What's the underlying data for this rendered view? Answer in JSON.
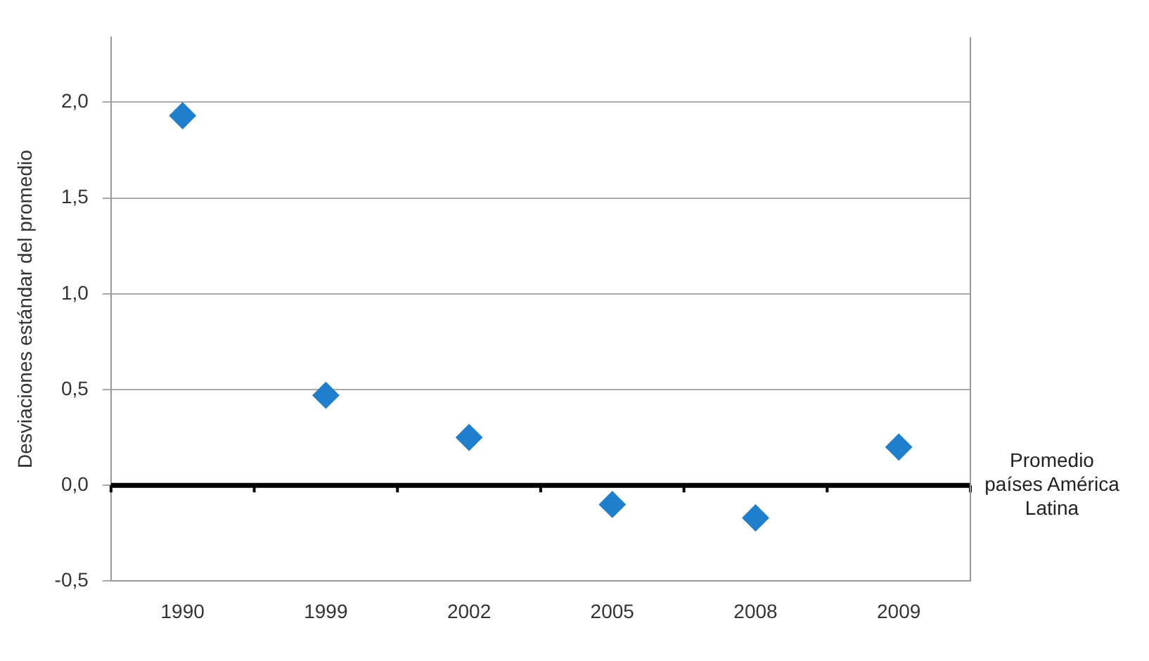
{
  "chart_data": {
    "type": "scatter",
    "categories": [
      "1990",
      "1999",
      "2002",
      "2005",
      "2008",
      "2009"
    ],
    "series": [
      {
        "color": "#1f7fcc",
        "values": [
          1.93,
          0.47,
          0.25,
          -0.1,
          -0.17,
          0.2
        ]
      }
    ],
    "ylabel": "Desviaciones estándar del promedio",
    "ylim": [
      -0.5,
      2.34
    ],
    "yticks": [
      {
        "value": -0.5,
        "label": "-0,5"
      },
      {
        "value": 0,
        "label": "0,0"
      },
      {
        "value": 0.5,
        "label": "0,5"
      },
      {
        "value": 1,
        "label": "1,0"
      },
      {
        "value": 1.5,
        "label": "1,5"
      },
      {
        "value": 2,
        "label": "2,0"
      }
    ],
    "ref_lines": [
      {
        "axis": "y",
        "value": 0,
        "label": "Promedio países América Latina",
        "color": "#000000"
      }
    ],
    "grid": "y",
    "legend": false,
    "marker": "diamond"
  }
}
